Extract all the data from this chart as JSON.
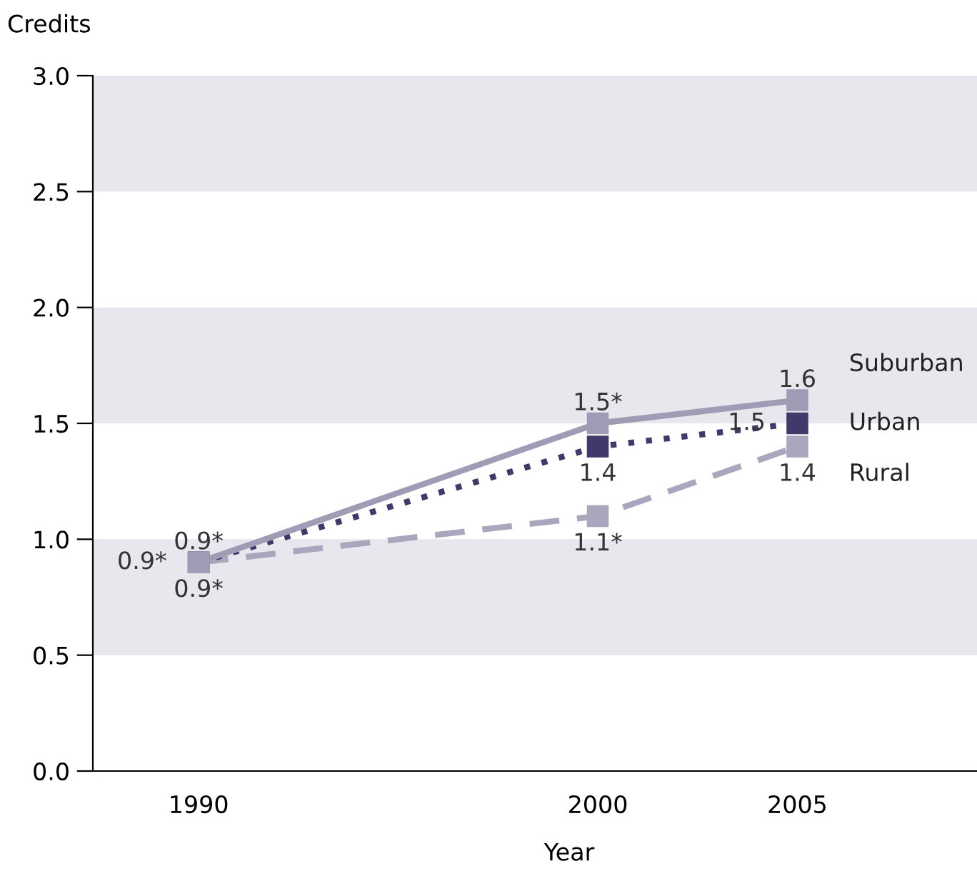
{
  "chart_data": {
    "type": "line",
    "xlabel": "Year",
    "ylabel": "Credits",
    "x": [
      1990,
      2000,
      2005
    ],
    "xlim": [
      1987.35,
      2009.5
    ],
    "xticks": [
      1990,
      2000,
      2005
    ],
    "ylim": [
      0,
      3
    ],
    "yticks": [
      {
        "value": 0,
        "label": "0.0"
      },
      {
        "value": 0.5,
        "label": "0.5"
      },
      {
        "value": 1,
        "label": "1.0"
      },
      {
        "value": 1.5,
        "label": "1.5"
      },
      {
        "value": 2,
        "label": "2.0"
      },
      {
        "value": 2.5,
        "label": "2.5"
      },
      {
        "value": 3,
        "label": "3.0"
      }
    ],
    "marker": "square",
    "grid": false,
    "legend": false,
    "bands": [
      {
        "axis": "y",
        "from": 0.5,
        "to": 1.0,
        "color": "#e9e7ee"
      },
      {
        "axis": "y",
        "from": 1.5,
        "to": 2.0,
        "color": "#e9e7ee"
      },
      {
        "axis": "y",
        "from": 2.5,
        "to": 3.0,
        "color": "#e9e7ee"
      }
    ],
    "series": [
      {
        "name": "Suburban",
        "color": "#a09cb5",
        "line_style": "solid",
        "values": [
          0.9,
          1.5,
          1.6
        ],
        "value_labels": [
          "0.9*",
          "1.5*",
          "1.6"
        ]
      },
      {
        "name": "Urban",
        "color": "#3f3a6a",
        "line_style": "dotted",
        "values": [
          0.9,
          1.4,
          1.5
        ],
        "value_labels": [
          "0.9*",
          "1.4",
          "1.5"
        ]
      },
      {
        "name": "Rural",
        "color": "#aaa6bd",
        "line_style": "dashed",
        "values": [
          0.9,
          1.1,
          1.4
        ],
        "value_labels": [
          "0.9*",
          "1.1*",
          "1.4"
        ]
      }
    ]
  }
}
